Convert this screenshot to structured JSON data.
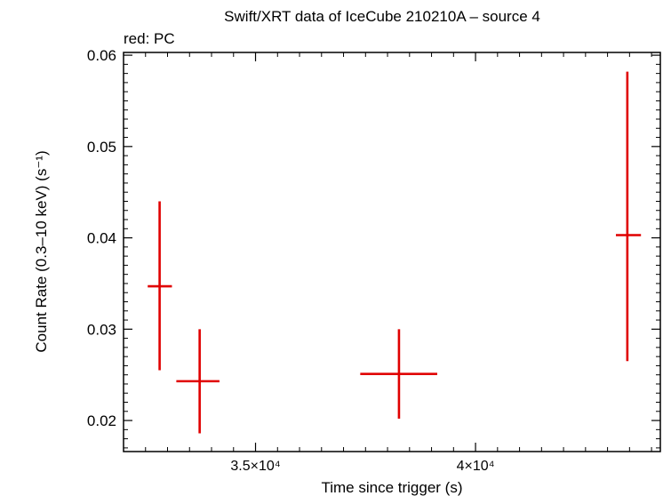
{
  "chart_data": {
    "type": "scatter",
    "title": "Swift/XRT data of IceCube 210210A – source 4",
    "subtitle": "red: PC",
    "xlabel": "Time since trigger (s)",
    "ylabel": "Count Rate (0.3–10 keV) (s⁻¹)",
    "xlim": [
      32000,
      44200
    ],
    "ylim": [
      0.0166,
      0.0603
    ],
    "x_ticks": [
      {
        "value": 35000,
        "label": "3.5×10⁴"
      },
      {
        "value": 40000,
        "label": "4×10⁴"
      }
    ],
    "y_ticks": [
      {
        "value": 0.02,
        "label": "0.02"
      },
      {
        "value": 0.03,
        "label": "0.03"
      },
      {
        "value": 0.04,
        "label": "0.04"
      },
      {
        "value": 0.05,
        "label": "0.05"
      },
      {
        "value": 0.06,
        "label": "0.06"
      }
    ],
    "series": [
      {
        "color": "#e00000",
        "points": [
          {
            "x": 32820,
            "x_lo": 32550,
            "x_hi": 33100,
            "y": 0.0347,
            "y_lo": 0.0255,
            "y_hi": 0.044
          },
          {
            "x": 33730,
            "x_lo": 33200,
            "x_hi": 34180,
            "y": 0.0243,
            "y_lo": 0.0186,
            "y_hi": 0.03
          },
          {
            "x": 38260,
            "x_lo": 37380,
            "x_hi": 39130,
            "y": 0.0251,
            "y_lo": 0.0202,
            "y_hi": 0.03
          },
          {
            "x": 43450,
            "x_lo": 43190,
            "x_hi": 43760,
            "y": 0.0403,
            "y_lo": 0.0265,
            "y_hi": 0.0582
          }
        ]
      }
    ],
    "grid": false
  }
}
